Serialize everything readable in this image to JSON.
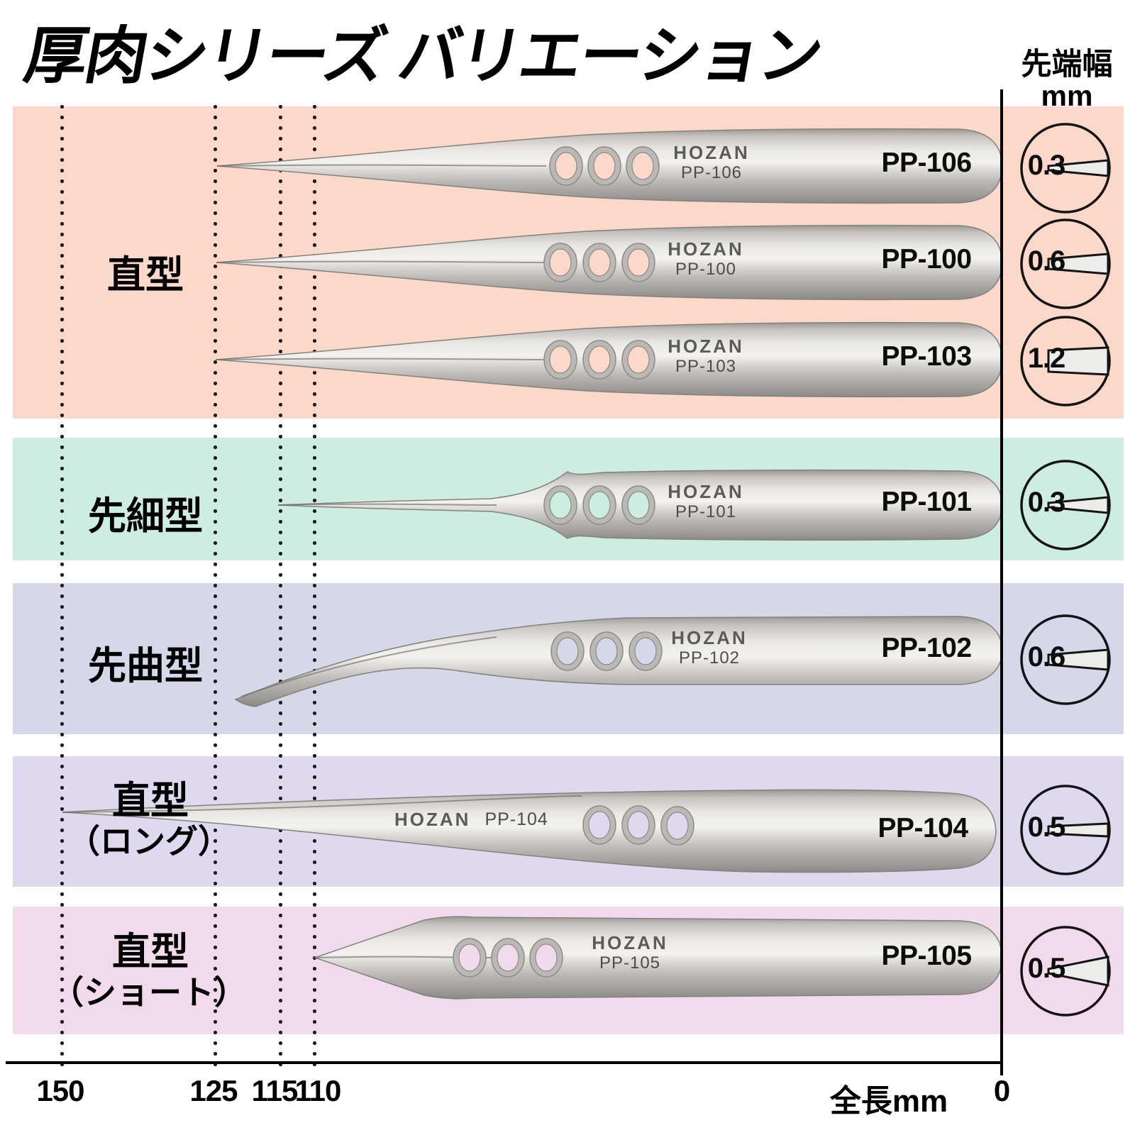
{
  "title": "厚肉シリーズ バリエーション",
  "brand": "HOZAN",
  "tip_width_header": {
    "title": "先端幅",
    "unit": "mm"
  },
  "axis": {
    "length_label": "全長mm",
    "origin": "0",
    "ticks": [
      "150",
      "125",
      "115",
      "110"
    ]
  },
  "groups": [
    {
      "label": "直型",
      "sublabel": "",
      "color": "#fbd8c9",
      "rows": [
        {
          "model": "PP-106",
          "tip_width": "0.3"
        },
        {
          "model": "PP-100",
          "tip_width": "0.6"
        },
        {
          "model": "PP-103",
          "tip_width": "1.2"
        }
      ]
    },
    {
      "label": "先細型",
      "sublabel": "",
      "color": "#cdece2",
      "rows": [
        {
          "model": "PP-101",
          "tip_width": "0.3"
        }
      ]
    },
    {
      "label": "先曲型",
      "sublabel": "",
      "color": "#d6d7e9",
      "rows": [
        {
          "model": "PP-102",
          "tip_width": "0.6"
        }
      ]
    },
    {
      "label": "直型",
      "sublabel": "（ロング）",
      "color": "#ded9ee",
      "rows": [
        {
          "model": "PP-104",
          "tip_width": "0.5"
        }
      ]
    },
    {
      "label": "直型",
      "sublabel": "（ショート）",
      "color": "#f2daed",
      "rows": [
        {
          "model": "PP-105",
          "tip_width": "0.5"
        }
      ]
    }
  ]
}
